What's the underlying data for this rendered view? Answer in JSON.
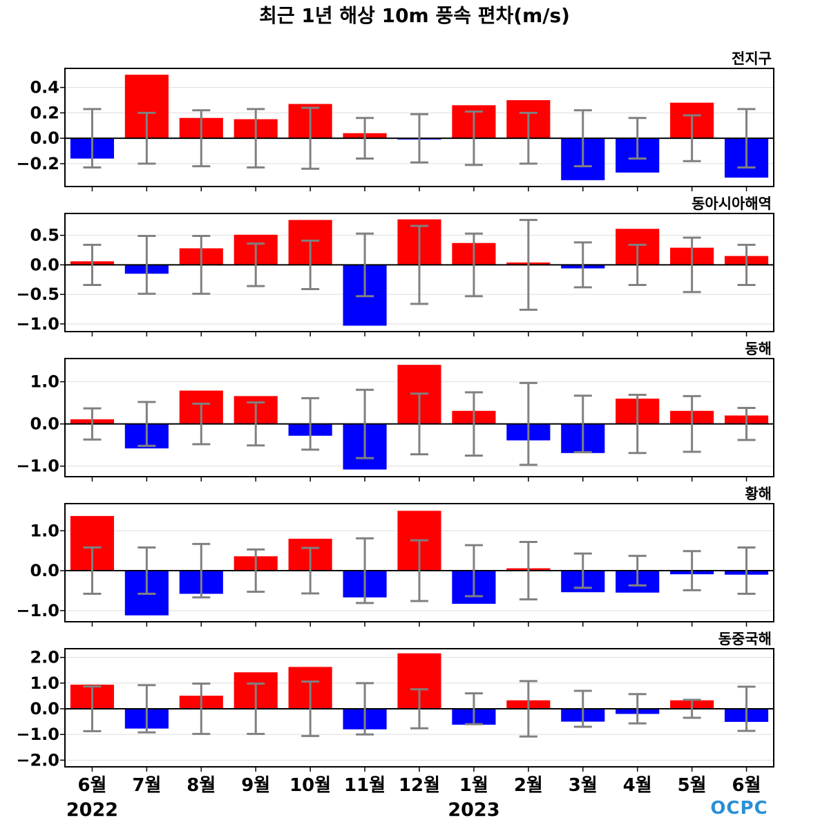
{
  "title": "최근 1년 해상 10m 풍속 편차(m/s)",
  "logo_text": "OCPC",
  "months": [
    "6월",
    "7월",
    "8월",
    "9월",
    "10월",
    "11월",
    "12월",
    "1월",
    "2월",
    "3월",
    "4월",
    "5월",
    "6월"
  ],
  "years": [
    "2022",
    "2023"
  ],
  "colors": {
    "positive": "#ff0000",
    "negative": "#0000ff",
    "errorbar": "#808080",
    "grid": "#dddddd",
    "zero": "#000000"
  },
  "chart_data": [
    {
      "type": "bar",
      "title": "전지구",
      "categories": [
        "6월",
        "7월",
        "8월",
        "9월",
        "10월",
        "11월",
        "12월",
        "1월",
        "2월",
        "3월",
        "4월",
        "5월",
        "6월"
      ],
      "values": [
        -0.16,
        0.5,
        0.16,
        0.15,
        0.27,
        0.04,
        -0.01,
        0.26,
        0.3,
        -0.33,
        -0.27,
        0.28,
        -0.31
      ],
      "errors": [
        0.23,
        0.2,
        0.22,
        0.23,
        0.24,
        0.16,
        0.19,
        0.21,
        0.2,
        0.22,
        0.16,
        0.18,
        0.23
      ],
      "ylim": [
        -0.38,
        0.55
      ],
      "yticks": [
        0.4,
        0.2,
        0.0,
        -0.2
      ],
      "ytick_labels": [
        "0.4",
        "0.2",
        "0.0",
        "−0.2"
      ]
    },
    {
      "type": "bar",
      "title": "동아시아해역",
      "categories": [
        "6월",
        "7월",
        "8월",
        "9월",
        "10월",
        "11월",
        "12월",
        "1월",
        "2월",
        "3월",
        "4월",
        "5월",
        "6월"
      ],
      "values": [
        0.06,
        -0.15,
        0.28,
        0.51,
        0.76,
        -1.03,
        0.77,
        0.37,
        0.04,
        -0.06,
        0.61,
        0.29,
        0.15
      ],
      "errors": [
        0.34,
        0.49,
        0.49,
        0.36,
        0.41,
        0.53,
        0.66,
        0.53,
        0.76,
        0.38,
        0.34,
        0.46,
        0.34
      ],
      "ylim": [
        -1.13,
        0.87
      ],
      "yticks": [
        0.5,
        0.0,
        -0.5,
        -1.0
      ],
      "ytick_labels": [
        "0.5",
        "0.0",
        "−0.5",
        "−1.0"
      ]
    },
    {
      "type": "bar",
      "title": "동해",
      "categories": [
        "6월",
        "7월",
        "8월",
        "9월",
        "10월",
        "11월",
        "12월",
        "1월",
        "2월",
        "3월",
        "4월",
        "5월",
        "6월"
      ],
      "values": [
        0.11,
        -0.58,
        0.79,
        0.66,
        -0.28,
        -1.08,
        1.4,
        0.31,
        -0.39,
        -0.69,
        0.6,
        0.31,
        0.2
      ],
      "errors": [
        0.37,
        0.52,
        0.48,
        0.51,
        0.61,
        0.81,
        0.72,
        0.75,
        0.97,
        0.67,
        0.69,
        0.66,
        0.38
      ],
      "ylim": [
        -1.25,
        1.55
      ],
      "yticks": [
        1.0,
        0.0,
        -1.0
      ],
      "ytick_labels": [
        "1.0",
        "0.0",
        "−1.0"
      ]
    },
    {
      "type": "bar",
      "title": "황해",
      "categories": [
        "6월",
        "7월",
        "8월",
        "9월",
        "10월",
        "11월",
        "12월",
        "1월",
        "2월",
        "3월",
        "4월",
        "5월",
        "6월"
      ],
      "values": [
        1.37,
        -1.12,
        -0.58,
        0.36,
        0.8,
        -0.67,
        1.5,
        -0.83,
        0.06,
        -0.54,
        -0.55,
        -0.09,
        -0.1
      ],
      "errors": [
        0.58,
        0.58,
        0.67,
        0.53,
        0.57,
        0.81,
        0.76,
        0.64,
        0.72,
        0.43,
        0.37,
        0.49,
        0.58
      ],
      "ylim": [
        -1.28,
        1.68
      ],
      "yticks": [
        1.0,
        0.0,
        -1.0
      ],
      "ytick_labels": [
        "1.0",
        "0.0",
        "−1.0"
      ]
    },
    {
      "type": "bar",
      "title": "동중국해",
      "categories": [
        "6월",
        "7월",
        "8월",
        "9월",
        "10월",
        "11월",
        "12월",
        "1월",
        "2월",
        "3월",
        "4월",
        "5월",
        "6월"
      ],
      "values": [
        0.94,
        -0.77,
        0.51,
        1.42,
        1.63,
        -0.8,
        2.16,
        -0.62,
        0.33,
        -0.5,
        -0.2,
        0.33,
        -0.51
      ],
      "errors": [
        0.87,
        0.92,
        0.98,
        0.98,
        1.06,
        1.0,
        0.76,
        0.6,
        1.08,
        0.7,
        0.57,
        0.35,
        0.86
      ],
      "ylim": [
        -2.26,
        2.34
      ],
      "yticks": [
        2.0,
        1.0,
        0.0,
        -1.0,
        -2.0
      ],
      "ytick_labels": [
        "2.0",
        "1.0",
        "0.0",
        "−1.0",
        "−2.0"
      ]
    }
  ]
}
